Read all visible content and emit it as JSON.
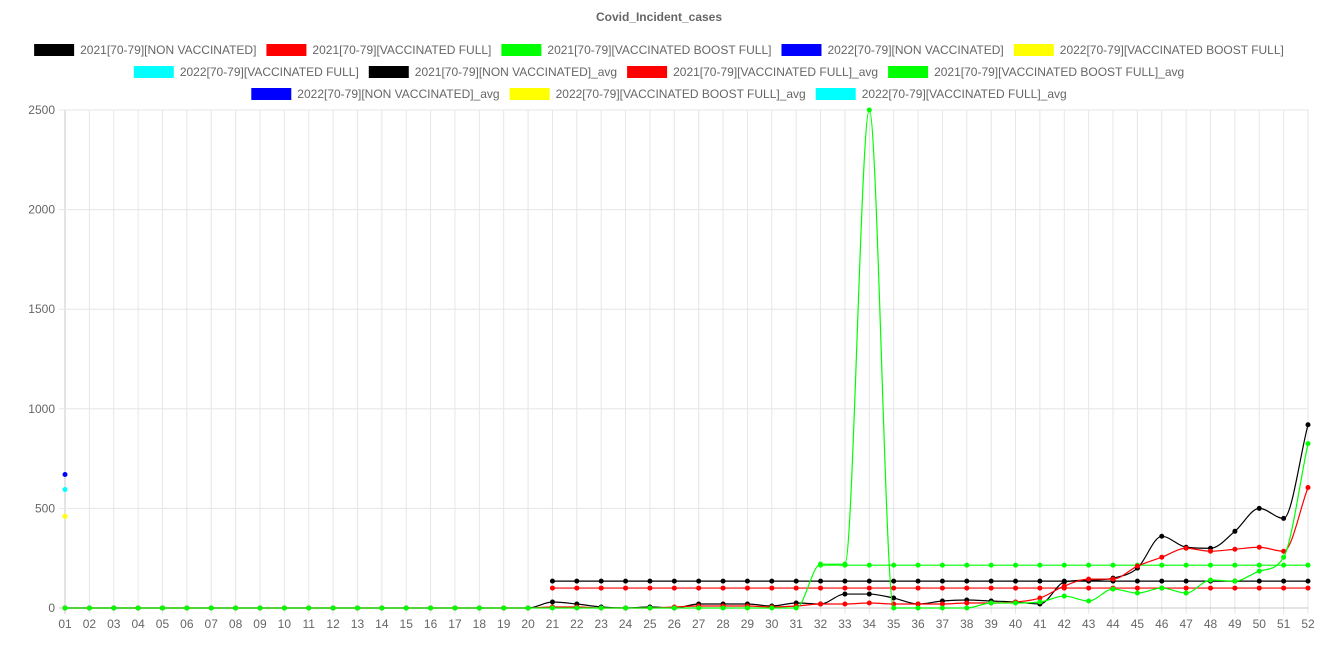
{
  "chart_data": {
    "type": "line",
    "title": "Covid_Incident_cases",
    "xlabel": "",
    "ylabel": "",
    "ylim": [
      0,
      2500
    ],
    "yticks": [
      0,
      500,
      1000,
      1500,
      2000,
      2500
    ],
    "grid": true,
    "legend_position": "top",
    "categories": [
      "01",
      "02",
      "03",
      "04",
      "05",
      "06",
      "07",
      "08",
      "09",
      "10",
      "11",
      "12",
      "13",
      "14",
      "15",
      "16",
      "17",
      "18",
      "19",
      "20",
      "21",
      "22",
      "23",
      "24",
      "25",
      "26",
      "27",
      "28",
      "29",
      "30",
      "31",
      "32",
      "33",
      "34",
      "35",
      "36",
      "37",
      "38",
      "39",
      "40",
      "41",
      "42",
      "43",
      "44",
      "45",
      "46",
      "47",
      "48",
      "49",
      "50",
      "51",
      "52"
    ],
    "series": [
      {
        "name": "2021[70-79][NON VACCINATED]",
        "color": "#000000",
        "line": true,
        "values": [
          0,
          0,
          0,
          0,
          0,
          0,
          0,
          0,
          0,
          0,
          0,
          0,
          0,
          0,
          0,
          0,
          0,
          0,
          0,
          0,
          30,
          20,
          5,
          0,
          5,
          0,
          20,
          20,
          20,
          10,
          25,
          20,
          70,
          70,
          50,
          20,
          35,
          40,
          35,
          30,
          20,
          130,
          140,
          150,
          200,
          360,
          305,
          300,
          385,
          500,
          450,
          920
        ]
      },
      {
        "name": "2021[70-79][VACCINATED FULL]",
        "color": "#ff0000",
        "line": true,
        "values": [
          0,
          0,
          0,
          0,
          0,
          0,
          0,
          0,
          0,
          0,
          0,
          0,
          0,
          0,
          0,
          0,
          0,
          0,
          0,
          0,
          5,
          5,
          0,
          0,
          0,
          5,
          10,
          10,
          10,
          5,
          10,
          20,
          20,
          25,
          20,
          20,
          20,
          25,
          25,
          30,
          50,
          110,
          145,
          145,
          210,
          255,
          300,
          285,
          295,
          305,
          285,
          605
        ]
      },
      {
        "name": "2021[70-79][VACCINATED BOOST FULL]",
        "color": "#00ff00",
        "line": true,
        "values": [
          0,
          0,
          0,
          0,
          0,
          0,
          0,
          0,
          0,
          0,
          0,
          0,
          0,
          0,
          0,
          0,
          0,
          0,
          0,
          0,
          0,
          0,
          0,
          0,
          0,
          0,
          0,
          0,
          0,
          0,
          0,
          220,
          220,
          2500,
          0,
          0,
          0,
          0,
          25,
          25,
          30,
          60,
          35,
          95,
          75,
          100,
          75,
          140,
          135,
          185,
          255,
          825
        ]
      },
      {
        "name": "2022[70-79][NON VACCINATED]",
        "color": "#0000ff",
        "line": false,
        "values": [
          670,
          null,
          null,
          null,
          null,
          null,
          null,
          null,
          null,
          null,
          null,
          null,
          null,
          null,
          null,
          null,
          null,
          null,
          null,
          null,
          null,
          null,
          null,
          null,
          null,
          null,
          null,
          null,
          null,
          null,
          null,
          null,
          null,
          null,
          null,
          null,
          null,
          null,
          null,
          null,
          null,
          null,
          null,
          null,
          null,
          null,
          null,
          null,
          null,
          null,
          null,
          null
        ]
      },
      {
        "name": "2022[70-79][VACCINATED BOOST FULL]",
        "color": "#ffff00",
        "line": false,
        "values": [
          460,
          null,
          null,
          null,
          null,
          null,
          null,
          null,
          null,
          null,
          null,
          null,
          null,
          null,
          null,
          null,
          null,
          null,
          null,
          null,
          null,
          null,
          null,
          null,
          null,
          null,
          null,
          null,
          null,
          null,
          null,
          null,
          null,
          null,
          null,
          null,
          null,
          null,
          null,
          null,
          null,
          null,
          null,
          null,
          null,
          null,
          null,
          null,
          null,
          null,
          null,
          null
        ]
      },
      {
        "name": "2022[70-79][VACCINATED FULL]",
        "color": "#00ffff",
        "line": false,
        "values": [
          595,
          null,
          null,
          null,
          null,
          null,
          null,
          null,
          null,
          null,
          null,
          null,
          null,
          null,
          null,
          null,
          null,
          null,
          null,
          null,
          null,
          null,
          null,
          null,
          null,
          null,
          null,
          null,
          null,
          null,
          null,
          null,
          null,
          null,
          null,
          null,
          null,
          null,
          null,
          null,
          null,
          null,
          null,
          null,
          null,
          null,
          null,
          null,
          null,
          null,
          null,
          null
        ]
      },
      {
        "name": "2021[70-79][NON VACCINATED]_avg",
        "color": "#000000",
        "line": true,
        "avg_value": 135,
        "avg_start_index": 20
      },
      {
        "name": "2021[70-79][VACCINATED FULL]_avg",
        "color": "#ff0000",
        "line": true,
        "avg_value": 100,
        "avg_start_index": 20
      },
      {
        "name": "2021[70-79][VACCINATED BOOST FULL]_avg",
        "color": "#00ff00",
        "line": true,
        "avg_value": 215,
        "avg_start_index": 31
      },
      {
        "name": "2022[70-79][NON VACCINATED]_avg",
        "color": "#0000ff",
        "line": false
      },
      {
        "name": "2022[70-79][VACCINATED BOOST FULL]_avg",
        "color": "#ffff00",
        "line": false
      },
      {
        "name": "2022[70-79][VACCINATED FULL]_avg",
        "color": "#00ffff",
        "line": false
      }
    ]
  }
}
